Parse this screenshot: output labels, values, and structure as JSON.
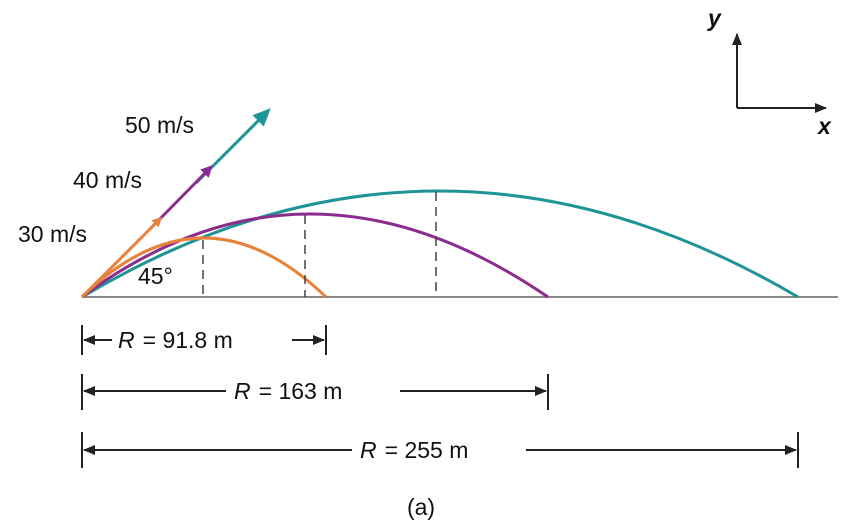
{
  "figure": {
    "caption": "(a)",
    "angle_label": "45°",
    "axes": {
      "y_label": "y",
      "x_label": "x"
    },
    "trajectories": [
      {
        "speed_label": "30 m/s",
        "range_prefix": "R",
        "range_value": "= 91.8 m",
        "color": "#e8813a"
      },
      {
        "speed_label": "40 m/s",
        "range_prefix": "R",
        "range_value": "= 163 m",
        "color": "#8c2c8e"
      },
      {
        "speed_label": "50 m/s",
        "range_prefix": "R",
        "range_value": "= 255 m",
        "color": "#1f9497"
      }
    ]
  }
}
